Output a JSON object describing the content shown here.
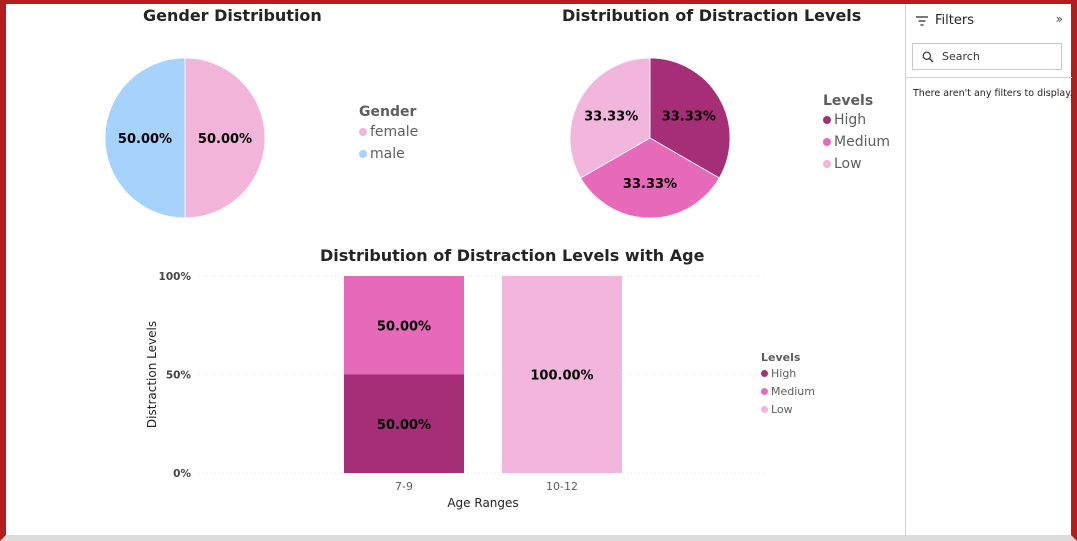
{
  "colors": {
    "female": "#f2b5d9",
    "male": "#a6d2fb",
    "high": "#a62e77",
    "medium": "#e66ab9",
    "low": "#f2b5dc",
    "frame": "#b51c1c"
  },
  "chart_data": [
    {
      "type": "pie",
      "title": "Gender Distribution",
      "legend_title": "Gender",
      "legend_position": "right",
      "slices": [
        {
          "label": "female",
          "value": 50.0,
          "data_label": "50.00%",
          "color": "#f2b5d9"
        },
        {
          "label": "male",
          "value": 50.0,
          "data_label": "50.00%",
          "color": "#a6d2fb"
        }
      ]
    },
    {
      "type": "pie",
      "title": "Distribution of Distraction Levels",
      "legend_title": "Levels",
      "legend_position": "right",
      "slices": [
        {
          "label": "High",
          "value": 33.33,
          "data_label": "33.33%",
          "color": "#a62e77"
        },
        {
          "label": "Medium",
          "value": 33.33,
          "data_label": "33.33%",
          "color": "#e66ab9"
        },
        {
          "label": "Low",
          "value": 33.33,
          "data_label": "33.33%",
          "color": "#f2b5dc"
        }
      ]
    },
    {
      "type": "bar",
      "stacked": true,
      "percent_stacked": true,
      "title": "Distribution of Distraction Levels with Age",
      "xlabel": "Age Ranges",
      "ylabel": "Distraction Levels",
      "yticks": [
        "0%",
        "50%",
        "100%"
      ],
      "ylim": [
        0,
        100
      ],
      "grid": true,
      "legend_title": "Levels",
      "legend_position": "right",
      "categories": [
        "7-9",
        "10-12"
      ],
      "series": [
        {
          "name": "High",
          "values": [
            50,
            0
          ],
          "data_labels": [
            "50.00%",
            ""
          ],
          "color": "#a62e77"
        },
        {
          "name": "Medium",
          "values": [
            50,
            0
          ],
          "data_labels": [
            "50.00%",
            ""
          ],
          "color": "#e66ab9"
        },
        {
          "name": "Low",
          "values": [
            0,
            100
          ],
          "data_labels": [
            "",
            "100.00%"
          ],
          "color": "#f2b5dc"
        }
      ]
    }
  ],
  "filters": {
    "title": "Filters",
    "search_placeholder": "Search",
    "empty_message": "There aren't any filters to display."
  }
}
